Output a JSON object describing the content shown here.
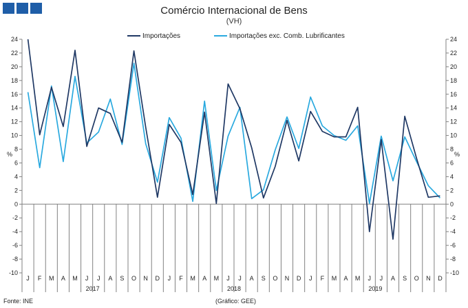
{
  "header": {
    "title": "Comércio Internacional de Bens",
    "subtitle": "(VH)"
  },
  "footer": {
    "source": "Fonte: INE",
    "credit": "(Gráfico: GEE)"
  },
  "colors": {
    "logo": "#1f5ea8",
    "series1": "#1f3864",
    "series2": "#29a9df",
    "axis": "#808080"
  },
  "chart_data": {
    "type": "line",
    "ylabel": "%",
    "ylim": [
      -10,
      24
    ],
    "ytick_step": 2,
    "grid": false,
    "legend_position": "top",
    "categories": [
      "J",
      "F",
      "M",
      "A",
      "M",
      "J",
      "J",
      "A",
      "S",
      "O",
      "N",
      "D",
      "J",
      "F",
      "M",
      "A",
      "M",
      "J",
      "J",
      "A",
      "S",
      "O",
      "N",
      "D",
      "J",
      "F",
      "M",
      "A",
      "M",
      "J",
      "J",
      "A",
      "S",
      "O",
      "N",
      "D"
    ],
    "years": [
      {
        "label": "2017",
        "start": 0,
        "end": 11
      },
      {
        "label": "2018",
        "start": 12,
        "end": 23
      },
      {
        "label": "2019",
        "start": 24,
        "end": 35
      }
    ],
    "series": [
      {
        "name": "Importações",
        "values": [
          24.0,
          10.1,
          17.0,
          11.3,
          22.4,
          8.4,
          14.0,
          13.2,
          9.0,
          22.3,
          11.2,
          1.0,
          11.6,
          9.0,
          1.4,
          13.4,
          0.1,
          17.5,
          13.9,
          8.2,
          0.9,
          5.5,
          12.2,
          6.3,
          13.5,
          10.6,
          9.8,
          9.8,
          14.1,
          -4.0,
          9.4,
          -5.1,
          12.8,
          6.7,
          1.0,
          1.2
        ]
      },
      {
        "name": "Importações exc. Comb. Lubrificantes",
        "values": [
          16.3,
          5.3,
          17.2,
          6.2,
          18.6,
          8.9,
          10.5,
          15.3,
          8.7,
          20.5,
          8.8,
          3.2,
          12.6,
          9.6,
          0.4,
          15.0,
          2.0,
          9.9,
          14.1,
          0.8,
          2.1,
          7.9,
          12.7,
          8.1,
          15.6,
          11.4,
          10.0,
          9.3,
          11.4,
          0.1,
          9.9,
          3.4,
          9.8,
          6.2,
          2.7,
          0.9
        ]
      }
    ]
  }
}
